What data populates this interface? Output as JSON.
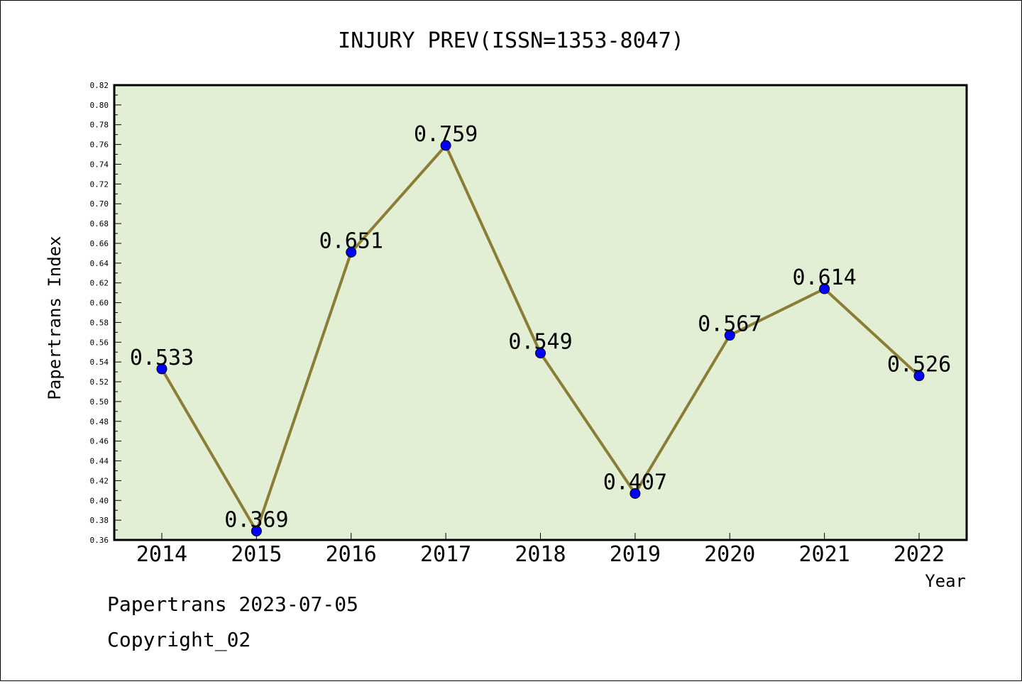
{
  "chart_data": {
    "type": "line",
    "title": "INJURY PREV(ISSN=1353-8047)",
    "xlabel": "Year",
    "ylabel": "Papertrans Index",
    "categories": [
      "2014",
      "2015",
      "2016",
      "2017",
      "2018",
      "2019",
      "2020",
      "2021",
      "2022"
    ],
    "values": [
      0.533,
      0.369,
      0.651,
      0.759,
      0.549,
      0.407,
      0.567,
      0.614,
      0.526
    ],
    "data_labels": [
      "0.533",
      "0.369",
      "0.651",
      "0.759",
      "0.549",
      "0.407",
      "0.567",
      "0.614",
      "0.526"
    ],
    "ylim": [
      0.36,
      0.82
    ],
    "yticks": [
      "0.36",
      "0.38",
      "0.40",
      "0.42",
      "0.44",
      "0.46",
      "0.48",
      "0.50",
      "0.52",
      "0.54",
      "0.56",
      "0.58",
      "0.60",
      "0.62",
      "0.64",
      "0.66",
      "0.68",
      "0.70",
      "0.72",
      "0.74",
      "0.76",
      "0.78",
      "0.80",
      "0.82"
    ],
    "grid": false,
    "colors": {
      "plot_bg": "#e2efd4",
      "line": "#8b7d36",
      "marker": "#0000ff"
    }
  },
  "footer": {
    "line1": "Papertrans 2023-07-05",
    "line2": "Copyright_02"
  }
}
